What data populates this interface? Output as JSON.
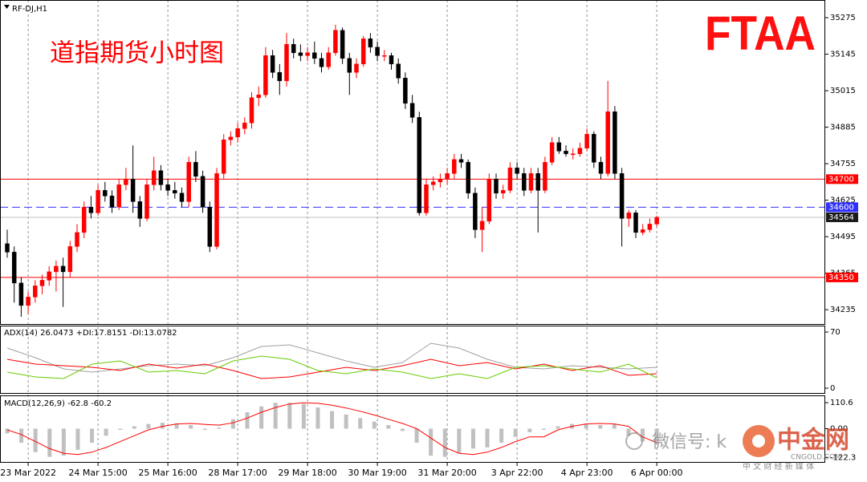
{
  "chart_data": [
    {
      "type": "candlestick",
      "symbol": "RF-DJ,H1",
      "title": "道指期货小时图",
      "logo": "FTAA",
      "watermark": [
        "微信号: k",
        "中金网",
        "CNGOLD.COM",
        "中 文 财 经 新 媒 体"
      ],
      "up_color": "#ff0000",
      "down_color": "#000000",
      "ylim": [
        34184,
        35338
      ],
      "yticks": [
        35275,
        35145,
        35015,
        34885,
        34755,
        34625,
        34495,
        34365,
        34235
      ],
      "levels": [
        {
          "value": 34700,
          "color": "#ff0000",
          "style": "solid"
        },
        {
          "value": 34600,
          "color": "#3333ff",
          "style": "dashed"
        },
        {
          "value": 34350,
          "color": "#ff0000",
          "style": "solid"
        },
        {
          "value": 34564,
          "color": "#c0c0c0",
          "style": "solid"
        }
      ],
      "categories": [
        null,
        null,
        null,
        "23 Mar 2022",
        null,
        null,
        null,
        null,
        null,
        null,
        null,
        null,
        null,
        "24 Mar 15:00",
        null,
        null,
        null,
        null,
        null,
        null,
        null,
        null,
        null,
        "25 Mar 16:00",
        null,
        null,
        null,
        null,
        null,
        null,
        null,
        null,
        null,
        "28 Mar 17:00",
        null,
        null,
        null,
        null,
        null,
        null,
        null,
        null,
        null,
        "29 Mar 18:00",
        null,
        null,
        null,
        null,
        null,
        null,
        null,
        null,
        null,
        "30 Mar 19:00",
        null,
        null,
        null,
        null,
        null,
        null,
        null,
        null,
        null,
        "31 Mar 20:00",
        null,
        null,
        null,
        null,
        null,
        null,
        null,
        null,
        null,
        "3 Apr 22:00",
        null,
        null,
        null,
        null,
        null,
        null,
        null,
        null,
        null,
        "4 Apr 23:00",
        null,
        null,
        null,
        null,
        null,
        null,
        null,
        null,
        null,
        "6 Apr 00:00"
      ],
      "open": [
        34470,
        34440,
        34330,
        34250,
        34280,
        34320,
        34340,
        34370,
        34390,
        34370,
        34460,
        34510,
        34600,
        34580,
        34660,
        34640,
        34600,
        34680,
        34700,
        34620,
        34560,
        34680,
        34730,
        34680,
        34660,
        34650,
        34620,
        34760,
        34710,
        34600,
        34460,
        34720,
        34840,
        34850,
        34880,
        34900,
        34990,
        35000,
        35140,
        35080,
        35050,
        35180,
        35150,
        35140,
        35150,
        35130,
        35100,
        35150,
        35230,
        35130,
        35080,
        35110,
        35200,
        35170,
        35140,
        35140,
        35110,
        35060,
        34970,
        34920,
        34580,
        34680,
        34690,
        34700,
        34720,
        34770,
        34760,
        34650,
        34520,
        34550,
        34700,
        34650,
        34660,
        34740,
        34720,
        34660,
        34720,
        34660,
        34760,
        34830,
        34800,
        34790,
        34790,
        34810,
        34860,
        34760,
        34720,
        34940,
        34720,
        34560,
        34580,
        34510,
        34520,
        34540
      ],
      "high": [
        34520,
        34460,
        34350,
        34300,
        34340,
        34360,
        34390,
        34410,
        34420,
        34480,
        34540,
        34620,
        34640,
        34680,
        34690,
        34660,
        34700,
        34740,
        34820,
        34640,
        34700,
        34780,
        34750,
        34700,
        34690,
        34670,
        34780,
        34800,
        34730,
        34620,
        34740,
        34860,
        34870,
        34900,
        34920,
        35010,
        35030,
        35170,
        35160,
        35110,
        35220,
        35200,
        35180,
        35170,
        35190,
        35150,
        35170,
        35250,
        35240,
        35150,
        35130,
        35210,
        35220,
        35190,
        35160,
        35150,
        35130,
        35080,
        35000,
        34940,
        34700,
        34710,
        34720,
        34740,
        34790,
        34790,
        34770,
        34670,
        34600,
        34720,
        34720,
        34680,
        34760,
        34760,
        34740,
        34740,
        34740,
        34780,
        34850,
        34850,
        34820,
        34810,
        34830,
        34880,
        34870,
        34780,
        35050,
        34960,
        34740,
        34590,
        34590,
        34540,
        34560,
        34570
      ],
      "low": [
        34420,
        34260,
        34210,
        34220,
        34260,
        34290,
        34320,
        34300,
        34245,
        34350,
        34440,
        34490,
        34560,
        34570,
        34620,
        34580,
        34590,
        34660,
        34580,
        34530,
        34550,
        34660,
        34660,
        34640,
        34630,
        34600,
        34600,
        34690,
        34580,
        34440,
        34450,
        34700,
        34820,
        34830,
        34860,
        34880,
        34960,
        34990,
        35060,
        35000,
        35030,
        35130,
        35120,
        35120,
        35110,
        35080,
        35090,
        35140,
        35110,
        35000,
        35060,
        35100,
        35150,
        35120,
        35120,
        35090,
        35040,
        34950,
        34900,
        34570,
        34570,
        34660,
        34670,
        34680,
        34700,
        34740,
        34630,
        34490,
        34440,
        34540,
        34630,
        34630,
        34650,
        34700,
        34640,
        34650,
        34510,
        34650,
        34750,
        34790,
        34780,
        34770,
        34780,
        34800,
        34740,
        34700,
        34710,
        34700,
        34460,
        34530,
        34490,
        34500,
        34510,
        34530
      ],
      "close": [
        34440,
        34330,
        34250,
        34280,
        34320,
        34340,
        34370,
        34390,
        34370,
        34460,
        34510,
        34600,
        34580,
        34660,
        34640,
        34600,
        34680,
        34700,
        34620,
        34560,
        34680,
        34730,
        34680,
        34660,
        34650,
        34620,
        34760,
        34710,
        34600,
        34460,
        34720,
        34840,
        34850,
        34880,
        34900,
        34990,
        35000,
        35140,
        35080,
        35050,
        35180,
        35150,
        35140,
        35150,
        35130,
        35100,
        35150,
        35230,
        35130,
        35080,
        35110,
        35200,
        35170,
        35140,
        35140,
        35110,
        35060,
        34970,
        34920,
        34580,
        34680,
        34690,
        34700,
        34720,
        34770,
        34760,
        34650,
        34520,
        34550,
        34700,
        34650,
        34660,
        34740,
        34720,
        34660,
        34720,
        34660,
        34760,
        34830,
        34800,
        34790,
        34790,
        34810,
        34860,
        34760,
        34720,
        34940,
        34720,
        34560,
        34580,
        34510,
        34520,
        34540,
        34564
      ]
    },
    {
      "type": "line",
      "title": "ADX(14) 26.0473 +DI:17.8151 -DI:13.0782",
      "ylim": [
        -6,
        78
      ],
      "yticks": [
        70,
        0
      ],
      "series": [
        {
          "color": "#a0a0a0",
          "values": [
            50,
            38,
            24,
            20,
            24,
            28,
            30,
            28,
            38,
            52,
            54,
            44,
            34,
            26,
            32,
            56,
            50,
            36,
            26,
            24,
            28,
            26,
            24,
            26
          ]
        },
        {
          "color": "#ff0000",
          "values": [
            36,
            30,
            28,
            26,
            22,
            30,
            25,
            30,
            22,
            12,
            14,
            20,
            26,
            22,
            28,
            36,
            28,
            32,
            24,
            30,
            22,
            28,
            16,
            18
          ]
        },
        {
          "color": "#66cc00",
          "values": [
            20,
            14,
            12,
            30,
            34,
            20,
            22,
            18,
            34,
            40,
            36,
            22,
            18,
            24,
            20,
            12,
            18,
            12,
            26,
            28,
            24,
            20,
            30,
            13
          ]
        }
      ]
    },
    {
      "type": "combo",
      "title": "MACD(12,26,9) -62.8 -60.2",
      "ylim": [
        -141.8,
        138.3
      ],
      "yticks": [
        110.6,
        {
          "value": 0,
          "label": "0.00"
        },
        -122.3
      ],
      "series": [
        {
          "type": "bar",
          "color": "#c0c0c0",
          "values": [
            -20,
            -60,
            -100,
            -120,
            -115,
            -90,
            -60,
            -30,
            -5,
            10,
            20,
            25,
            22,
            15,
            -5,
            5,
            40,
            70,
            95,
            110,
            110,
            105,
            90,
            75,
            60,
            45,
            30,
            15,
            -10,
            -60,
            -115,
            -120,
            -105,
            -85,
            -80,
            -60,
            -35,
            -15,
            -5,
            10,
            20,
            20,
            15,
            20,
            -30,
            -55,
            -63
          ]
        },
        {
          "type": "line",
          "color": "#ff0000",
          "values": [
            -5,
            -25,
            -55,
            -85,
            -105,
            -110,
            -100,
            -80,
            -55,
            -30,
            -5,
            10,
            20,
            22,
            18,
            15,
            25,
            45,
            70,
            90,
            105,
            110,
            108,
            100,
            88,
            74,
            58,
            40,
            22,
            0,
            -40,
            -80,
            -105,
            -110,
            -100,
            -80,
            -55,
            -35,
            -35,
            -5,
            10,
            20,
            22,
            20,
            10,
            -35,
            -60
          ]
        }
      ]
    }
  ]
}
